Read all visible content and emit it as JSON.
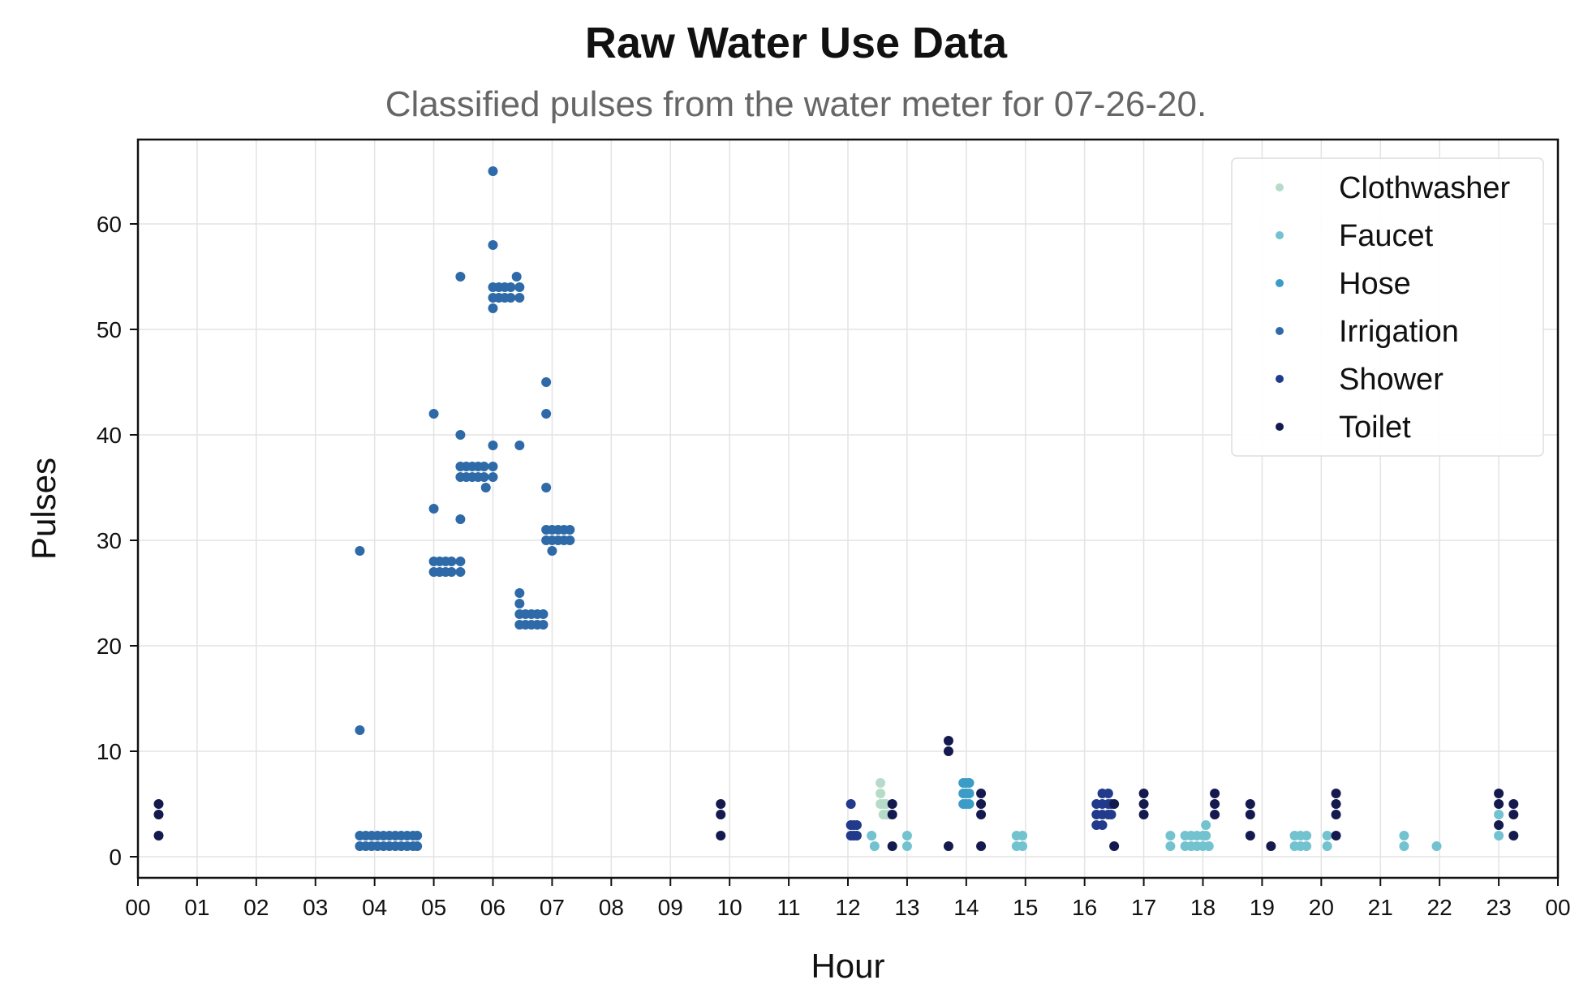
{
  "chart_data": {
    "type": "scatter",
    "title": "Raw Water Use Data",
    "subtitle": "Classified pulses from the water meter for 07-26-20.",
    "xlabel": "Hour",
    "ylabel": "Pulses",
    "xlim": [
      0,
      24
    ],
    "ylim": [
      -2,
      68
    ],
    "x_ticks": [
      0,
      1,
      2,
      3,
      4,
      5,
      6,
      7,
      8,
      9,
      10,
      11,
      12,
      13,
      14,
      15,
      16,
      17,
      18,
      19,
      20,
      21,
      22,
      23,
      24
    ],
    "x_tick_labels": [
      "00",
      "01",
      "02",
      "03",
      "04",
      "05",
      "06",
      "07",
      "08",
      "09",
      "10",
      "11",
      "12",
      "13",
      "14",
      "15",
      "16",
      "17",
      "18",
      "19",
      "20",
      "21",
      "22",
      "23",
      "00"
    ],
    "y_ticks": [
      0,
      10,
      20,
      30,
      40,
      50,
      60
    ],
    "grid": true,
    "legend_position": "top-right",
    "series": [
      {
        "name": "Clothwasher",
        "color": "#b6dcc9",
        "points": [
          [
            12.55,
            7
          ],
          [
            12.55,
            6
          ],
          [
            12.55,
            5
          ],
          [
            12.6,
            5
          ],
          [
            12.6,
            4
          ],
          [
            12.65,
            4
          ],
          [
            12.65,
            5
          ],
          [
            12.7,
            4
          ]
        ]
      },
      {
        "name": "Faucet",
        "color": "#73c2d0",
        "points": [
          [
            12.4,
            2
          ],
          [
            12.45,
            1
          ],
          [
            13.0,
            2
          ],
          [
            13.0,
            1
          ],
          [
            14.85,
            2
          ],
          [
            14.85,
            1
          ],
          [
            14.95,
            2
          ],
          [
            14.95,
            1
          ],
          [
            17.45,
            2
          ],
          [
            17.45,
            1
          ],
          [
            17.7,
            2
          ],
          [
            17.7,
            1
          ],
          [
            17.8,
            2
          ],
          [
            17.8,
            1
          ],
          [
            17.9,
            2
          ],
          [
            17.9,
            1
          ],
          [
            18.0,
            2
          ],
          [
            18.0,
            1
          ],
          [
            18.05,
            3
          ],
          [
            18.05,
            2
          ],
          [
            18.1,
            1
          ],
          [
            19.55,
            2
          ],
          [
            19.55,
            1
          ],
          [
            19.65,
            2
          ],
          [
            19.65,
            1
          ],
          [
            19.75,
            2
          ],
          [
            19.75,
            1
          ],
          [
            20.1,
            2
          ],
          [
            20.1,
            1
          ],
          [
            21.4,
            2
          ],
          [
            21.4,
            1
          ],
          [
            21.95,
            1
          ],
          [
            23.0,
            4
          ],
          [
            23.0,
            2
          ]
        ]
      },
      {
        "name": "Hose",
        "color": "#3a9cc7",
        "points": [
          [
            13.95,
            7
          ],
          [
            13.95,
            6
          ],
          [
            13.95,
            5
          ],
          [
            14.0,
            7
          ],
          [
            14.0,
            6
          ],
          [
            14.0,
            5
          ],
          [
            14.05,
            7
          ],
          [
            14.05,
            6
          ],
          [
            14.05,
            5
          ]
        ]
      },
      {
        "name": "Irrigation",
        "color": "#2e6aa8",
        "points": [
          [
            3.75,
            29
          ],
          [
            3.75,
            12
          ],
          [
            3.75,
            2
          ],
          [
            3.75,
            1
          ],
          [
            3.85,
            2
          ],
          [
            3.85,
            1
          ],
          [
            3.95,
            2
          ],
          [
            3.95,
            1
          ],
          [
            4.05,
            2
          ],
          [
            4.05,
            1
          ],
          [
            4.15,
            2
          ],
          [
            4.15,
            1
          ],
          [
            4.25,
            2
          ],
          [
            4.25,
            1
          ],
          [
            4.35,
            2
          ],
          [
            4.35,
            1
          ],
          [
            4.45,
            2
          ],
          [
            4.45,
            1
          ],
          [
            4.55,
            2
          ],
          [
            4.55,
            1
          ],
          [
            4.65,
            2
          ],
          [
            4.65,
            1
          ],
          [
            4.72,
            2
          ],
          [
            4.72,
            1
          ],
          [
            5.0,
            42
          ],
          [
            5.0,
            33
          ],
          [
            5.0,
            28
          ],
          [
            5.0,
            27
          ],
          [
            5.1,
            28
          ],
          [
            5.1,
            27
          ],
          [
            5.2,
            28
          ],
          [
            5.2,
            27
          ],
          [
            5.3,
            28
          ],
          [
            5.3,
            27
          ],
          [
            5.45,
            55
          ],
          [
            5.45,
            40
          ],
          [
            5.45,
            32
          ],
          [
            5.45,
            28
          ],
          [
            5.45,
            27
          ],
          [
            5.45,
            37
          ],
          [
            5.45,
            36
          ],
          [
            5.55,
            37
          ],
          [
            5.55,
            36
          ],
          [
            5.65,
            37
          ],
          [
            5.65,
            36
          ],
          [
            5.75,
            37
          ],
          [
            5.75,
            36
          ],
          [
            5.85,
            37
          ],
          [
            5.85,
            36
          ],
          [
            5.88,
            35
          ],
          [
            6.0,
            65
          ],
          [
            6.0,
            58
          ],
          [
            6.0,
            54
          ],
          [
            6.0,
            53
          ],
          [
            6.0,
            52
          ],
          [
            6.0,
            39
          ],
          [
            6.0,
            37
          ],
          [
            6.0,
            36
          ],
          [
            6.1,
            54
          ],
          [
            6.1,
            53
          ],
          [
            6.2,
            54
          ],
          [
            6.2,
            53
          ],
          [
            6.3,
            54
          ],
          [
            6.3,
            53
          ],
          [
            6.4,
            55
          ],
          [
            6.45,
            54
          ],
          [
            6.45,
            53
          ],
          [
            6.45,
            39
          ],
          [
            6.45,
            25
          ],
          [
            6.45,
            24
          ],
          [
            6.45,
            23
          ],
          [
            6.45,
            22
          ],
          [
            6.55,
            23
          ],
          [
            6.55,
            22
          ],
          [
            6.65,
            23
          ],
          [
            6.65,
            22
          ],
          [
            6.75,
            23
          ],
          [
            6.75,
            22
          ],
          [
            6.85,
            23
          ],
          [
            6.85,
            22
          ],
          [
            6.9,
            45
          ],
          [
            6.9,
            42
          ],
          [
            6.9,
            35
          ],
          [
            6.9,
            31
          ],
          [
            6.9,
            30
          ],
          [
            7.0,
            31
          ],
          [
            7.0,
            30
          ],
          [
            7.0,
            29
          ],
          [
            7.1,
            31
          ],
          [
            7.1,
            30
          ],
          [
            7.2,
            31
          ],
          [
            7.2,
            30
          ],
          [
            7.3,
            31
          ],
          [
            7.3,
            30
          ]
        ]
      },
      {
        "name": "Shower",
        "color": "#223a8c",
        "points": [
          [
            12.05,
            5
          ],
          [
            12.05,
            3
          ],
          [
            12.05,
            2
          ],
          [
            12.1,
            3
          ],
          [
            12.1,
            2
          ],
          [
            12.15,
            3
          ],
          [
            12.15,
            2
          ],
          [
            16.2,
            5
          ],
          [
            16.2,
            4
          ],
          [
            16.2,
            3
          ],
          [
            16.3,
            6
          ],
          [
            16.3,
            5
          ],
          [
            16.3,
            4
          ],
          [
            16.3,
            3
          ],
          [
            16.4,
            6
          ],
          [
            16.4,
            5
          ],
          [
            16.4,
            4
          ],
          [
            16.45,
            5
          ],
          [
            16.45,
            4
          ]
        ]
      },
      {
        "name": "Toilet",
        "color": "#141a4e",
        "points": [
          [
            0.35,
            5
          ],
          [
            0.35,
            4
          ],
          [
            0.35,
            2
          ],
          [
            9.85,
            5
          ],
          [
            9.85,
            4
          ],
          [
            9.85,
            2
          ],
          [
            12.75,
            5
          ],
          [
            12.75,
            4
          ],
          [
            12.75,
            1
          ],
          [
            13.7,
            11
          ],
          [
            13.7,
            10
          ],
          [
            13.7,
            1
          ],
          [
            14.25,
            6
          ],
          [
            14.25,
            5
          ],
          [
            14.25,
            4
          ],
          [
            14.25,
            1
          ],
          [
            16.5,
            5
          ],
          [
            16.5,
            1
          ],
          [
            17.0,
            6
          ],
          [
            17.0,
            5
          ],
          [
            17.0,
            4
          ],
          [
            18.2,
            6
          ],
          [
            18.2,
            5
          ],
          [
            18.2,
            4
          ],
          [
            18.8,
            5
          ],
          [
            18.8,
            4
          ],
          [
            18.8,
            2
          ],
          [
            19.15,
            1
          ],
          [
            20.25,
            6
          ],
          [
            20.25,
            5
          ],
          [
            20.25,
            4
          ],
          [
            20.25,
            2
          ],
          [
            23.0,
            6
          ],
          [
            23.0,
            5
          ],
          [
            23.0,
            3
          ],
          [
            23.25,
            5
          ],
          [
            23.25,
            4
          ],
          [
            23.25,
            2
          ]
        ]
      }
    ]
  }
}
